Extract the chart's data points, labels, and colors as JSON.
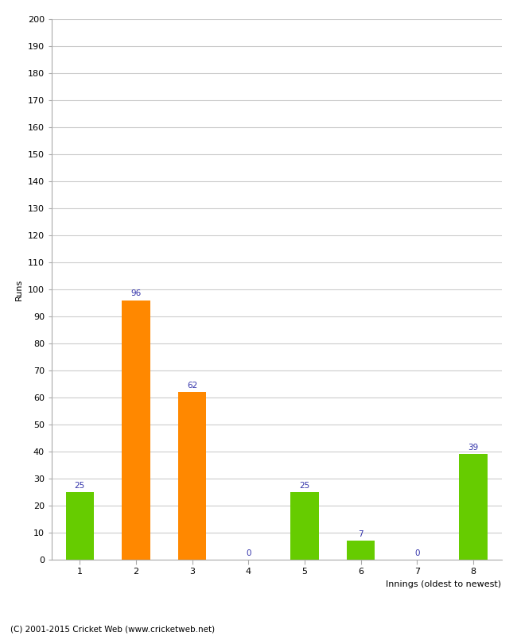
{
  "categories": [
    "1",
    "2",
    "3",
    "4",
    "5",
    "6",
    "7",
    "8"
  ],
  "values": [
    25,
    96,
    62,
    0,
    25,
    7,
    0,
    39
  ],
  "bar_colors": [
    "#66cc00",
    "#ff8800",
    "#ff8800",
    "#66cc00",
    "#66cc00",
    "#66cc00",
    "#66cc00",
    "#66cc00"
  ],
  "xlabel": "Innings (oldest to newest)",
  "ylabel": "Runs",
  "ylim": [
    0,
    200
  ],
  "yticks": [
    0,
    10,
    20,
    30,
    40,
    50,
    60,
    70,
    80,
    90,
    100,
    110,
    120,
    130,
    140,
    150,
    160,
    170,
    180,
    190,
    200
  ],
  "label_color": "#3333aa",
  "label_fontsize": 7.5,
  "axis_fontsize": 8,
  "tick_fontsize": 8,
  "footer": "(C) 2001-2015 Cricket Web (www.cricketweb.net)",
  "footer_fontsize": 7.5,
  "background_color": "#ffffff",
  "grid_color": "#cccccc",
  "bar_width": 0.5
}
